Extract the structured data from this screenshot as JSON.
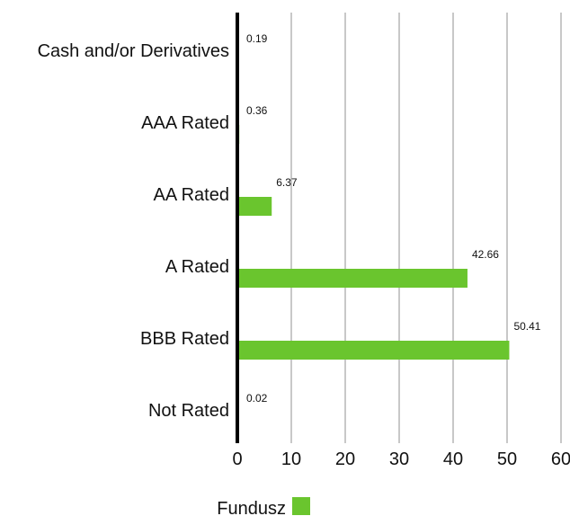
{
  "chart_data": {
    "type": "bar",
    "orientation": "horizontal",
    "categories": [
      "Cash and/or Derivatives",
      "AAA Rated",
      "AA Rated",
      "A Rated",
      "BBB Rated",
      "Not Rated"
    ],
    "series": [
      {
        "name": "Fundusz",
        "values": [
          0.19,
          0.36,
          6.37,
          42.66,
          50.41,
          0.02
        ],
        "color": "#6ac52e"
      }
    ],
    "data_labels": [
      "0.19",
      "0.36",
      "6.37",
      "42.66",
      "50.41",
      "0.02"
    ],
    "x_ticks": [
      "0",
      "10",
      "20",
      "30",
      "40",
      "50",
      "60"
    ],
    "xlim": [
      0,
      60
    ],
    "grid": "vertical",
    "legend_position": "bottom",
    "title": "",
    "xlabel": "",
    "ylabel": ""
  },
  "colors": {
    "grid": "#c8c8c8",
    "axis": "#000000",
    "text": "#111111"
  }
}
